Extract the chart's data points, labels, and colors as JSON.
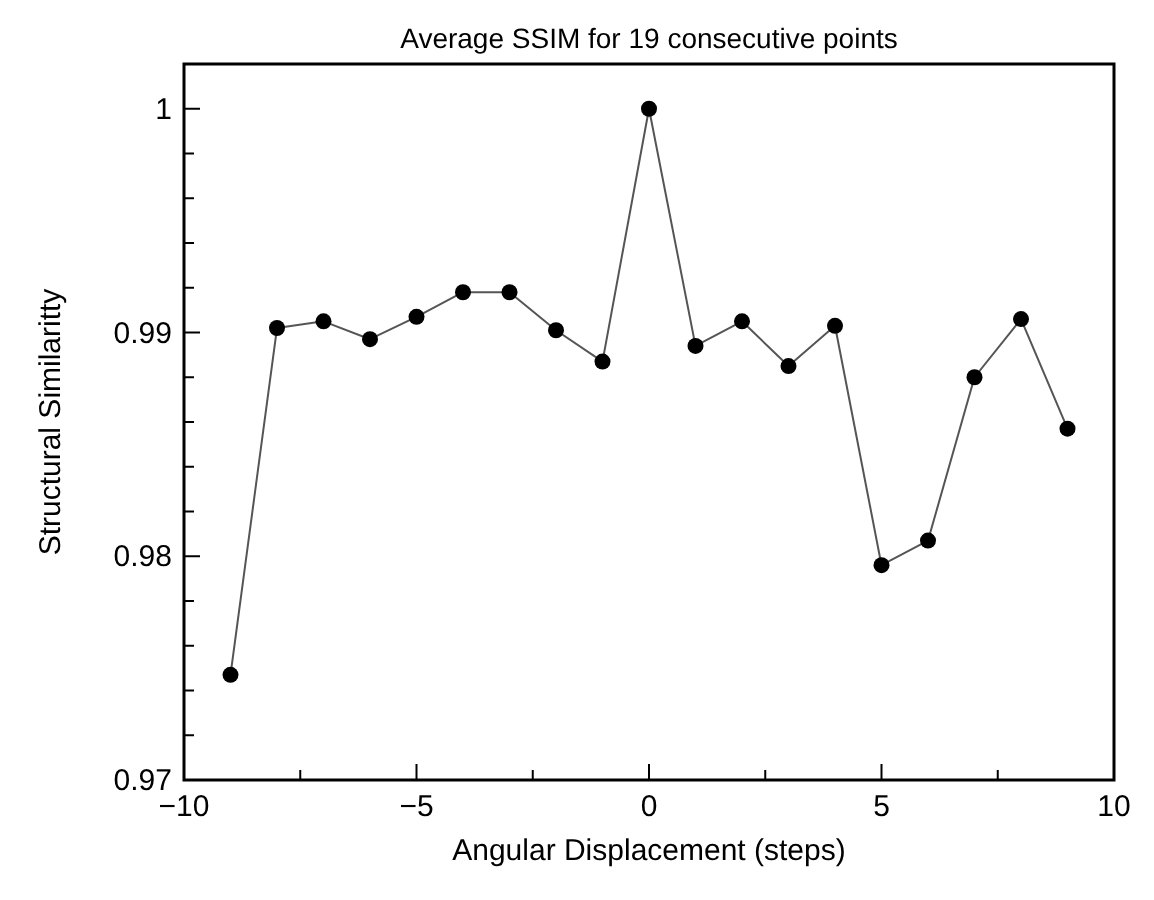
{
  "chart_data": {
    "type": "line",
    "title": "Average SSIM for 19 consecutive points",
    "xlabel": "Angular Displacement (steps)",
    "ylabel": "Structural Similaritty",
    "x": [
      -9,
      -8,
      -7,
      -6,
      -5,
      -4,
      -3,
      -2,
      -1,
      0,
      1,
      2,
      3,
      4,
      5,
      6,
      7,
      8,
      9
    ],
    "series": [
      {
        "color": "#000000",
        "values": [
          0.9747,
          0.9902,
          0.9905,
          0.9897,
          0.9907,
          0.9918,
          0.9918,
          0.9901,
          0.9887,
          1.0,
          0.9894,
          0.9905,
          0.9885,
          0.9903,
          0.9796,
          0.9807,
          0.988,
          0.9906,
          0.9857
        ]
      }
    ],
    "xlim": [
      -10,
      10
    ],
    "xticks": [
      {
        "value": -10,
        "label": "−10"
      },
      {
        "value": -7.5,
        "label": null
      },
      {
        "value": -5,
        "label": "−5"
      },
      {
        "value": -2.5,
        "label": null
      },
      0,
      {
        "value": 2.5,
        "label": null
      },
      5,
      {
        "value": 7.5,
        "label": null
      },
      10
    ],
    "ylim": [
      0.97,
      1.002
    ],
    "yticks": [
      0.97,
      {
        "value": 0.972,
        "label": null
      },
      {
        "value": 0.974,
        "label": null
      },
      {
        "value": 0.976,
        "label": null
      },
      {
        "value": 0.978,
        "label": null
      },
      0.98,
      {
        "value": 0.982,
        "label": null
      },
      {
        "value": 0.984,
        "label": null
      },
      {
        "value": 0.986,
        "label": null
      },
      {
        "value": 0.988,
        "label": null
      },
      0.99,
      {
        "value": 0.992,
        "label": null
      },
      {
        "value": 0.994,
        "label": null
      },
      {
        "value": 0.996,
        "label": null
      },
      {
        "value": 0.998,
        "label": null
      },
      1
    ],
    "grid": false,
    "marker": "circle",
    "line_style": "solid"
  }
}
